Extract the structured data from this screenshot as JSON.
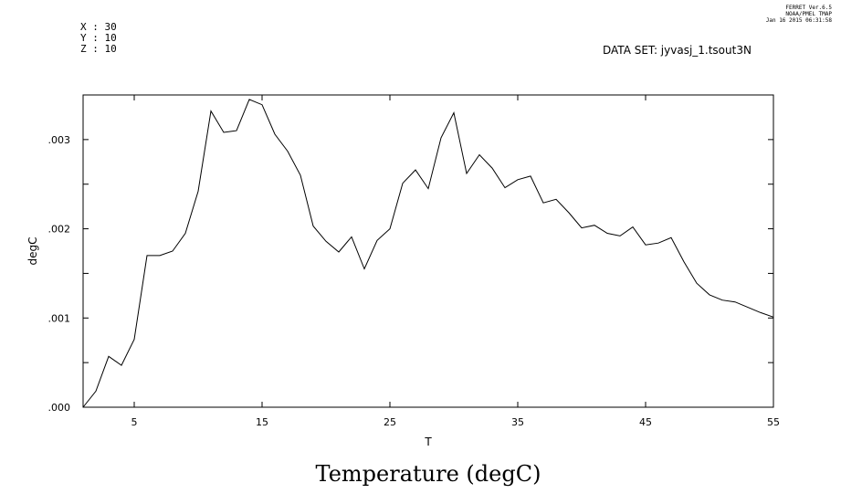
{
  "header": {
    "coords": [
      "X : 30",
      "Y : 10",
      "Z : 10"
    ],
    "stamp": [
      "FERRET  Ver.6.5",
      "NOAA/PMEL TMAP",
      "Jan 16 2015 06:31:58"
    ],
    "dataset": "DATA SET: jyvasj_1.tsout3N"
  },
  "chart_data": {
    "type": "line",
    "title": "Temperature (degC)",
    "xlabel": "T",
    "ylabel": "degC",
    "xlim": [
      1,
      55
    ],
    "ylim": [
      0,
      0.0035
    ],
    "x_ticks": [
      5,
      15,
      25,
      35,
      45,
      55
    ],
    "x_tick_labels": [
      "5",
      "15",
      "25",
      "35",
      "45",
      "55"
    ],
    "y_ticks": [
      0,
      0.001,
      0.002,
      0.003
    ],
    "y_tick_labels": [
      ".000",
      ".001",
      ".002",
      ".003"
    ],
    "grid": false,
    "series": [
      {
        "x": [
          1,
          2,
          3,
          4,
          5,
          6,
          7,
          8,
          9,
          10,
          11,
          12,
          13,
          14,
          15,
          16,
          17,
          18,
          19,
          20,
          21,
          22,
          23,
          24,
          25,
          26,
          27,
          28,
          29,
          30,
          31,
          32,
          33,
          34,
          35,
          36,
          37,
          38,
          39,
          40,
          41,
          42,
          43,
          44,
          45,
          46,
          47,
          48,
          49,
          50,
          51,
          52,
          53,
          54,
          55
        ],
        "values": [
          0.0,
          0.00018,
          0.00057,
          0.00047,
          0.00076,
          0.0017,
          0.0017,
          0.00175,
          0.00195,
          0.00242,
          0.00332,
          0.00308,
          0.0031,
          0.00345,
          0.00339,
          0.00306,
          0.00287,
          0.0026,
          0.00203,
          0.00186,
          0.00174,
          0.00191,
          0.00155,
          0.00187,
          0.002,
          0.00251,
          0.00266,
          0.00245,
          0.00302,
          0.0033,
          0.00262,
          0.00283,
          0.00268,
          0.00246,
          0.00255,
          0.00259,
          0.00229,
          0.00233,
          0.00218,
          0.00201,
          0.00204,
          0.00195,
          0.00192,
          0.00202,
          0.00182,
          0.00184,
          0.0019,
          0.00163,
          0.00139,
          0.00126,
          0.0012,
          0.00118,
          0.00112,
          0.00106,
          0.00101
        ],
        "color": "#000000"
      }
    ]
  }
}
